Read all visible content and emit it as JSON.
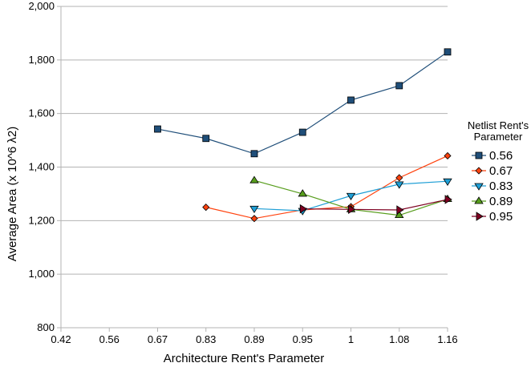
{
  "chart_data": {
    "type": "line",
    "title": "",
    "xlabel": "Architecture Rent's Parameter",
    "ylabel": "Average Area (x 10^6 λ2)",
    "categories": [
      "0.42",
      "0.56",
      "0.67",
      "0.83",
      "0.89",
      "0.95",
      "1",
      "1.08",
      "1.16"
    ],
    "y_ticks": [
      "800",
      "1,000",
      "1,200",
      "1,400",
      "1,600",
      "1,800",
      "2,000"
    ],
    "ylim": [
      800,
      2000
    ],
    "grid": "horizontal",
    "legend": {
      "title": "Netlist Rent's Parameter",
      "placement": "right"
    },
    "series": [
      {
        "name": "0.56",
        "color": "#1f4e79",
        "marker": "square",
        "values": [
          null,
          null,
          1542,
          1507,
          1450,
          1530,
          1650,
          1704,
          1830
        ]
      },
      {
        "name": "0.67",
        "color": "#ff420e",
        "marker": "diamond",
        "values": [
          null,
          null,
          null,
          1250,
          1208,
          1240,
          1252,
          1360,
          1442
        ]
      },
      {
        "name": "0.83",
        "color": "#1f9fd6",
        "marker": "triangle-down",
        "values": [
          null,
          null,
          null,
          null,
          1245,
          1237,
          1293,
          1336,
          1347
        ]
      },
      {
        "name": "0.89",
        "color": "#579d1c",
        "marker": "triangle-up",
        "values": [
          null,
          null,
          null,
          null,
          1350,
          1300,
          1242,
          1220,
          1280
        ]
      },
      {
        "name": "0.95",
        "color": "#7e0021",
        "marker": "triangle-right",
        "values": [
          null,
          null,
          null,
          null,
          null,
          1244,
          1242,
          1240,
          1279
        ]
      }
    ]
  }
}
